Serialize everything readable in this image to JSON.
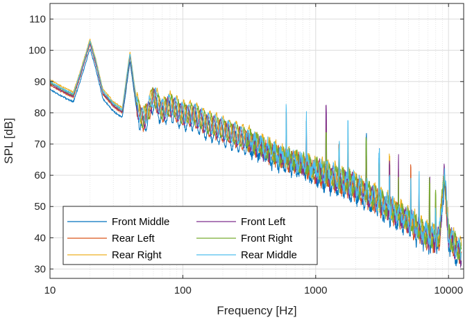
{
  "chart_data": {
    "type": "line",
    "xlabel": "Frequency [Hz]",
    "ylabel": "SPL [dB]",
    "xscale": "log",
    "xlim": [
      10,
      13000
    ],
    "ylim": [
      27,
      115
    ],
    "xticks": [
      10,
      100,
      1000,
      10000
    ],
    "xtick_labels": [
      "10",
      "100",
      "1000",
      "10000"
    ],
    "yticks": [
      30,
      40,
      50,
      60,
      70,
      80,
      90,
      100,
      110
    ],
    "ytick_labels": [
      "30",
      "40",
      "50",
      "60",
      "70",
      "80",
      "90",
      "100",
      "110"
    ],
    "grid": true,
    "legend_position": "bottom-left",
    "series": [
      {
        "name": "Front Middle",
        "color": "#0072BD",
        "offset": -1.5
      },
      {
        "name": "Front Left",
        "color": "#7E2F8E",
        "offset": 0.3
      },
      {
        "name": "Rear Left",
        "color": "#D95319",
        "offset": 0.0
      },
      {
        "name": "Front Right",
        "color": "#77AC30",
        "offset": 0.8
      },
      {
        "name": "Rear Right",
        "color": "#EDB120",
        "offset": 1.6
      },
      {
        "name": "Rear Middle",
        "color": "#4DBEEE",
        "offset": 1.0
      }
    ],
    "envelope": {
      "freq_hz": [
        10,
        12,
        15,
        17,
        20,
        22,
        25,
        30,
        35,
        40,
        45,
        50,
        55,
        60,
        70,
        80,
        100,
        120,
        150,
        200,
        300,
        500,
        700,
        1000,
        1500,
        2000,
        3000,
        5000,
        7000,
        8500,
        9300,
        10000,
        12500
      ],
      "spl_db": [
        89,
        87,
        85,
        92,
        102,
        96,
        86,
        82,
        80,
        98,
        82,
        77,
        80,
        85,
        80,
        82,
        79,
        79,
        76,
        74,
        71,
        66,
        64,
        61,
        58,
        56,
        51,
        45,
        40,
        39,
        60,
        40,
        34
      ]
    }
  }
}
